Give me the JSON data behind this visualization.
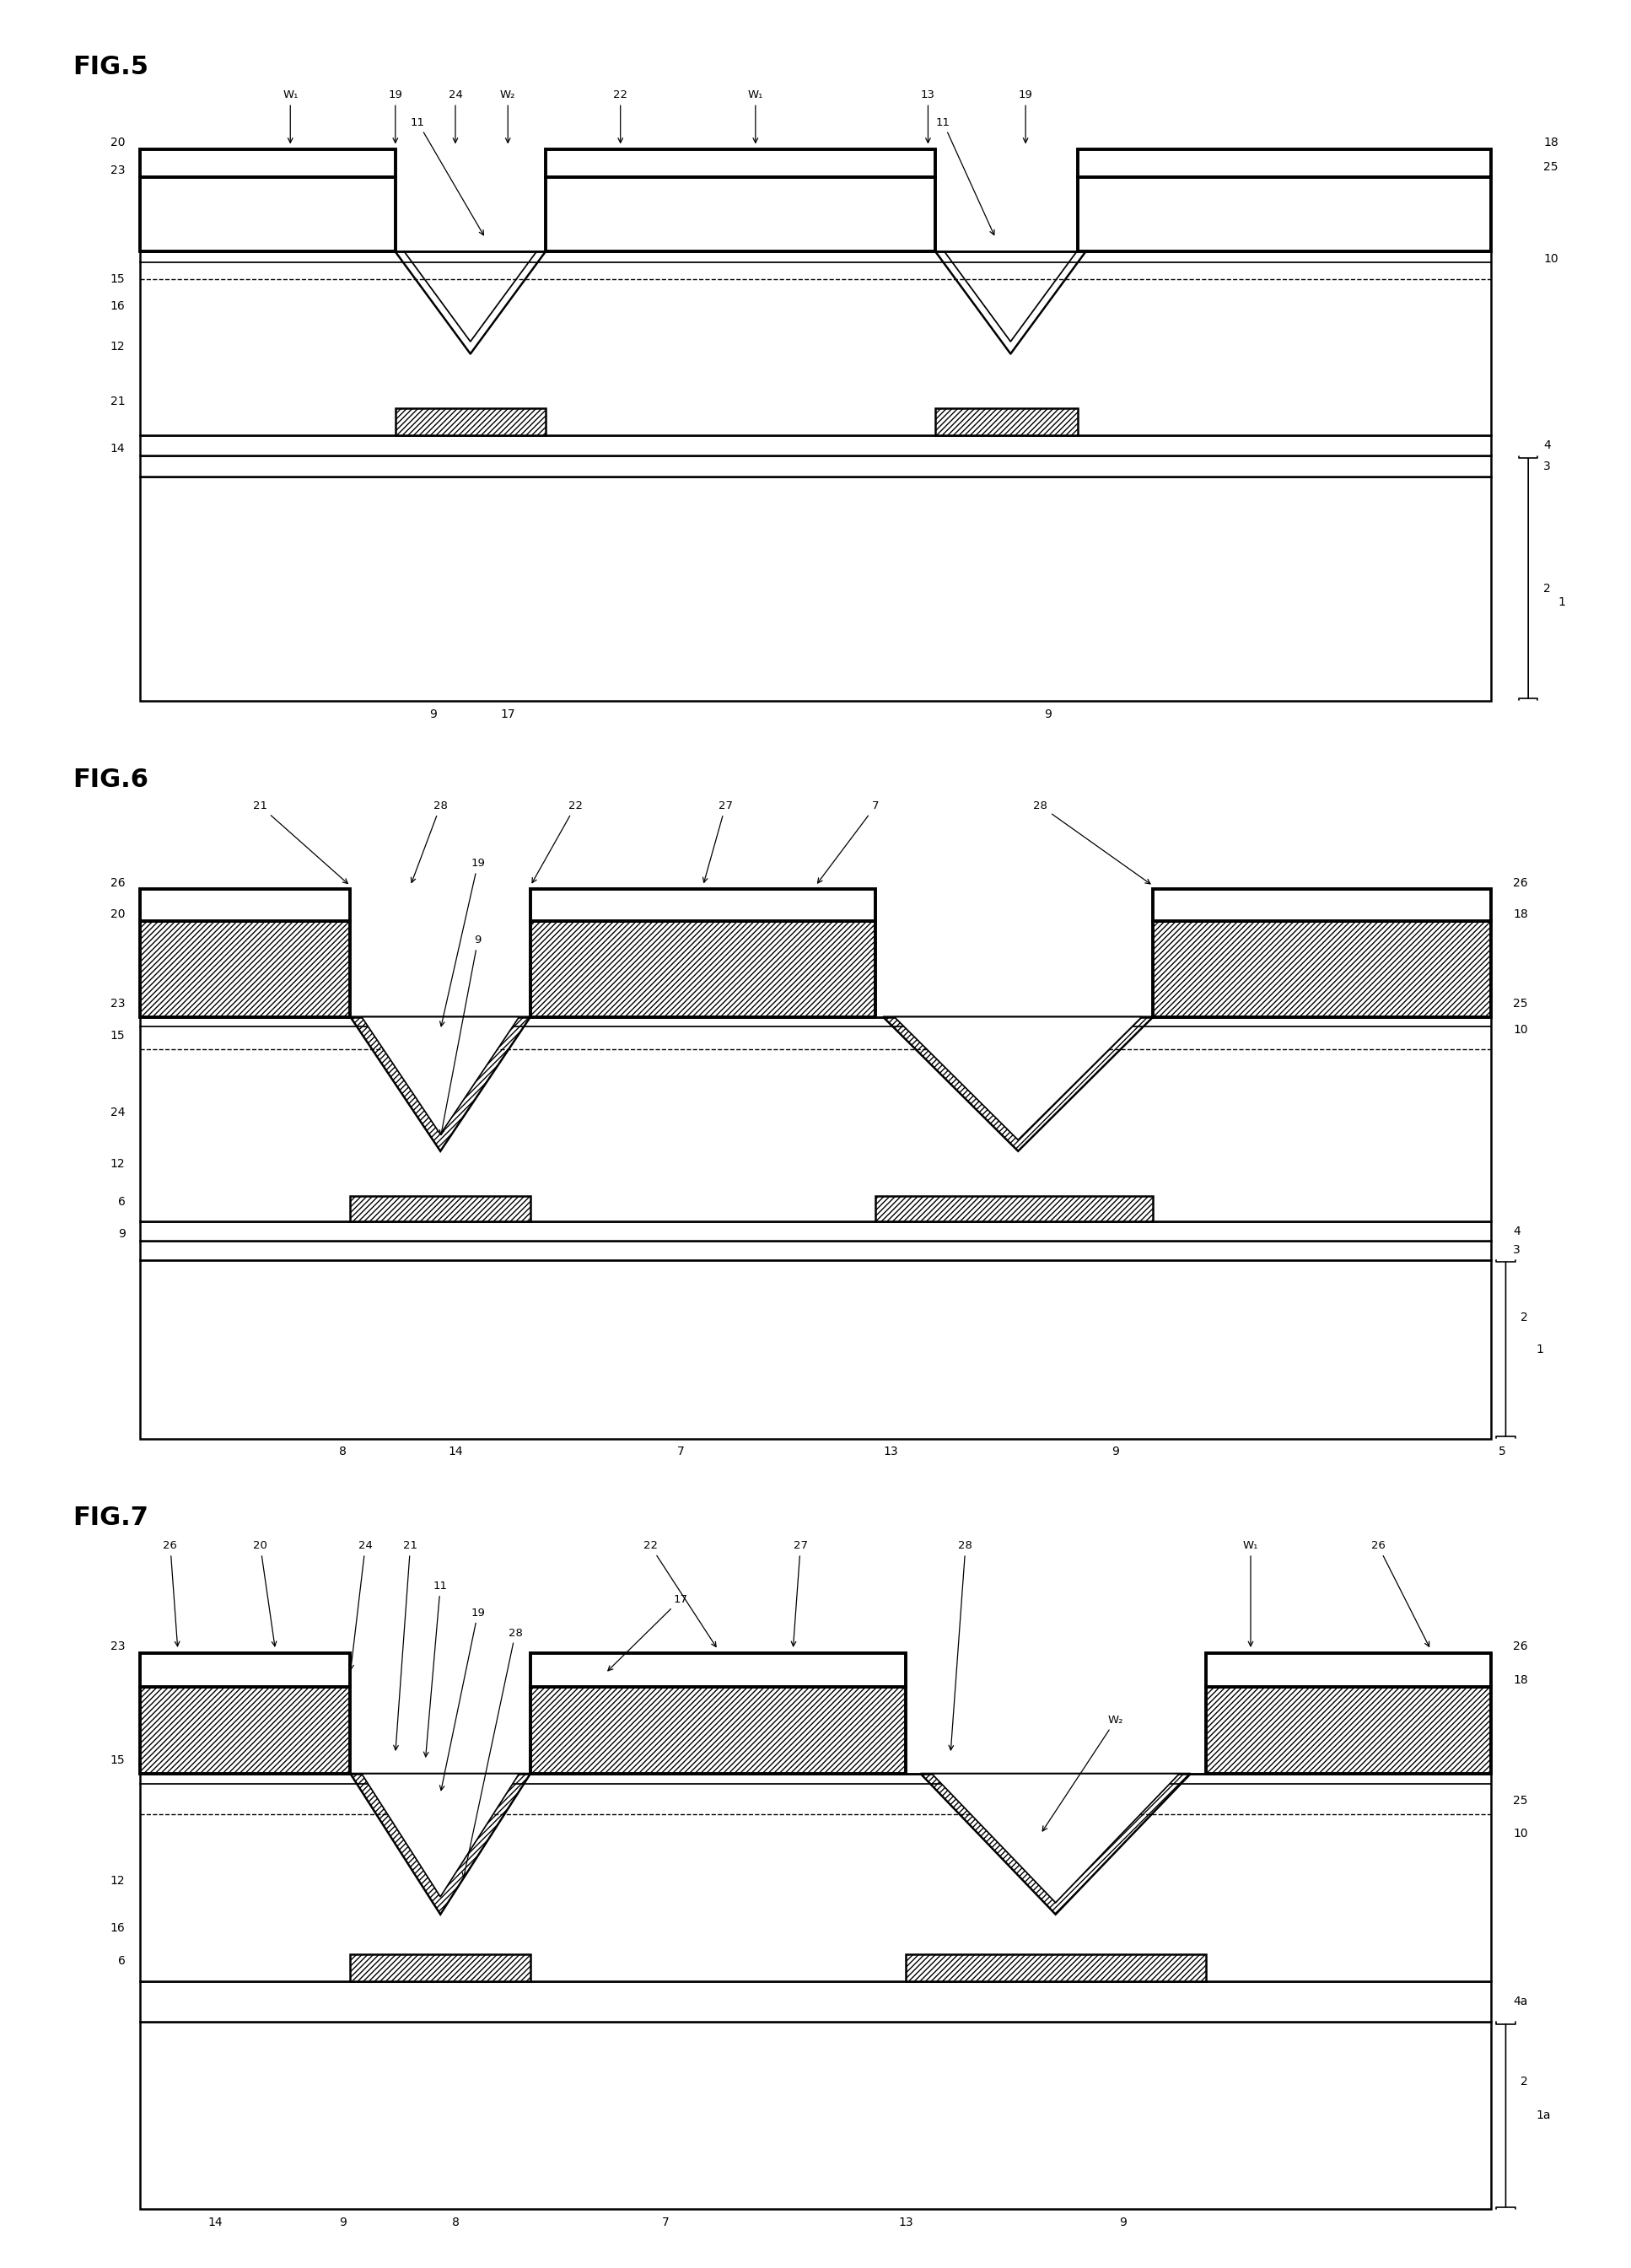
{
  "bg_color": "#ffffff",
  "fig_titles": [
    "FIG.5",
    "FIG.6",
    "FIG.7"
  ]
}
